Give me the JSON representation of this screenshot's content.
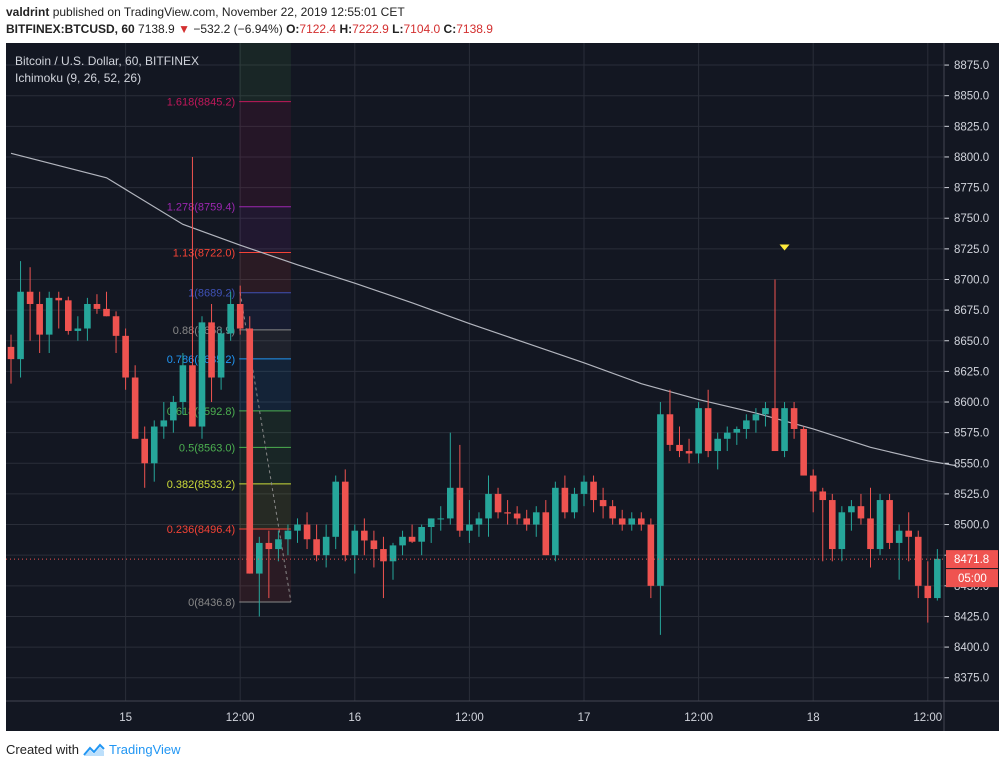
{
  "header": {
    "author": "valdrint",
    "published_text": "published on TradingView.com, November 22, 2019 12:55:01 CET",
    "symbol": "BITFINEX:BTCUSD, 60",
    "last_price": "7138.9",
    "change": "−532.2 (−6.94%)",
    "o_label": "O:",
    "o_value": "7122.4",
    "h_label": "H:",
    "h_value": "7222.9",
    "l_label": "L:",
    "l_value": "7104.0",
    "c_label": "C:",
    "c_value": "7138.9"
  },
  "footer": {
    "created_with": "Created with",
    "brand": "TradingView"
  },
  "colors": {
    "background": "#131722",
    "grid": "#2a2e39",
    "up": "#26a69a",
    "down": "#ef5350",
    "ma_line": "#b2b5be",
    "axis_text": "#d1d4dc",
    "price_tag": "#ef5350",
    "marker": "#ffeb3b"
  },
  "chart_data": {
    "type": "candlestick",
    "legend_title": "Bitcoin / U.S. Dollar, 60, BITFINEX",
    "indicator_label": "Ichimoku (9, 26, 52, 26)",
    "ylim": [
      8356,
      8893
    ],
    "y_ticks": [
      "8875.0",
      "8850.0",
      "8825.0",
      "8800.0",
      "8775.0",
      "8750.0",
      "8725.0",
      "8700.0",
      "8675.0",
      "8650.0",
      "8625.0",
      "8600.0",
      "8575.0",
      "8550.0",
      "8525.0",
      "8500.0",
      "8475.0",
      "8450.0",
      "8425.0",
      "8400.0",
      "8375.0"
    ],
    "x_ticks": [
      {
        "label": "15",
        "index": 12
      },
      {
        "label": "12:00",
        "index": 24
      },
      {
        "label": "16",
        "index": 36
      },
      {
        "label": "12:00",
        "index": 48
      },
      {
        "label": "17",
        "index": 60
      },
      {
        "label": "12:00",
        "index": 72
      },
      {
        "label": "18",
        "index": 84
      },
      {
        "label": "12:00",
        "index": 96
      }
    ],
    "current_price_label": "8471.8",
    "countdown_label": "05:00",
    "current_price": 8471.8,
    "candles": [
      [
        8645,
        8655,
        8615,
        8635
      ],
      [
        8635,
        8715,
        8620,
        8690
      ],
      [
        8690,
        8710,
        8650,
        8680
      ],
      [
        8680,
        8690,
        8640,
        8655
      ],
      [
        8655,
        8690,
        8640,
        8685
      ],
      [
        8685,
        8690,
        8660,
        8683
      ],
      [
        8683,
        8686,
        8655,
        8658
      ],
      [
        8658,
        8670,
        8650,
        8660
      ],
      [
        8660,
        8685,
        8650,
        8680
      ],
      [
        8680,
        8688,
        8672,
        8676
      ],
      [
        8676,
        8690,
        8670,
        8670
      ],
      [
        8670,
        8674,
        8640,
        8654
      ],
      [
        8654,
        8660,
        8610,
        8620
      ],
      [
        8620,
        8630,
        8570,
        8570
      ],
      [
        8570,
        8580,
        8530,
        8550
      ],
      [
        8550,
        8585,
        8535,
        8580
      ],
      [
        8580,
        8600,
        8570,
        8585
      ],
      [
        8585,
        8605,
        8575,
        8600
      ],
      [
        8600,
        8640,
        8590,
        8630
      ],
      [
        8630,
        8800,
        8580,
        8580
      ],
      [
        8580,
        8670,
        8570,
        8665
      ],
      [
        8665,
        8680,
        8600,
        8620
      ],
      [
        8620,
        8660,
        8610,
        8656
      ],
      [
        8656,
        8690,
        8650,
        8680
      ],
      [
        8680,
        8695,
        8655,
        8660
      ],
      [
        8660,
        8670,
        8460,
        8460
      ],
      [
        8460,
        8490,
        8425,
        8485
      ],
      [
        8485,
        8495,
        8440,
        8480
      ],
      [
        8480,
        8495,
        8470,
        8488
      ],
      [
        8488,
        8500,
        8475,
        8495
      ],
      [
        8495,
        8505,
        8485,
        8500
      ],
      [
        8500,
        8510,
        8480,
        8488
      ],
      [
        8488,
        8500,
        8470,
        8475
      ],
      [
        8475,
        8500,
        8465,
        8490
      ],
      [
        8490,
        8540,
        8480,
        8535
      ],
      [
        8535,
        8545,
        8470,
        8475
      ],
      [
        8475,
        8500,
        8460,
        8495
      ],
      [
        8495,
        8505,
        8475,
        8487
      ],
      [
        8487,
        8495,
        8465,
        8480
      ],
      [
        8480,
        8490,
        8440,
        8470
      ],
      [
        8470,
        8485,
        8455,
        8483
      ],
      [
        8483,
        8495,
        8475,
        8490
      ],
      [
        8490,
        8500,
        8485,
        8486
      ],
      [
        8486,
        8500,
        8475,
        8498
      ],
      [
        8498,
        8505,
        8485,
        8505
      ],
      [
        8505,
        8515,
        8495,
        8505
      ],
      [
        8505,
        8575,
        8500,
        8530
      ],
      [
        8530,
        8565,
        8490,
        8495
      ],
      [
        8495,
        8520,
        8485,
        8500
      ],
      [
        8500,
        8510,
        8490,
        8505
      ],
      [
        8505,
        8540,
        8490,
        8525
      ],
      [
        8525,
        8530,
        8505,
        8510
      ],
      [
        8510,
        8520,
        8500,
        8509
      ],
      [
        8509,
        8515,
        8500,
        8505
      ],
      [
        8505,
        8512,
        8495,
        8500
      ],
      [
        8500,
        8515,
        8490,
        8510
      ],
      [
        8510,
        8520,
        8475,
        8475
      ],
      [
        8475,
        8535,
        8470,
        8530
      ],
      [
        8530,
        8540,
        8505,
        8510
      ],
      [
        8510,
        8530,
        8505,
        8525
      ],
      [
        8525,
        8540,
        8515,
        8535
      ],
      [
        8535,
        8540,
        8510,
        8520
      ],
      [
        8520,
        8530,
        8505,
        8515
      ],
      [
        8515,
        8520,
        8500,
        8505
      ],
      [
        8505,
        8512,
        8495,
        8500
      ],
      [
        8500,
        8510,
        8495,
        8505
      ],
      [
        8505,
        8510,
        8495,
        8500
      ],
      [
        8500,
        8505,
        8440,
        8450
      ],
      [
        8450,
        8600,
        8410,
        8590
      ],
      [
        8590,
        8610,
        8560,
        8565
      ],
      [
        8565,
        8580,
        8555,
        8560
      ],
      [
        8560,
        8570,
        8550,
        8558
      ],
      [
        8558,
        8600,
        8550,
        8595
      ],
      [
        8595,
        8610,
        8555,
        8560
      ],
      [
        8560,
        8575,
        8545,
        8570
      ],
      [
        8570,
        8580,
        8560,
        8575
      ],
      [
        8575,
        8580,
        8565,
        8578
      ],
      [
        8578,
        8590,
        8570,
        8585
      ],
      [
        8585,
        8595,
        8575,
        8590
      ],
      [
        8590,
        8600,
        8580,
        8595
      ],
      [
        8595,
        8700,
        8560,
        8560
      ],
      [
        8560,
        8600,
        8555,
        8595
      ],
      [
        8595,
        8600,
        8570,
        8578
      ],
      [
        8578,
        8580,
        8540,
        8540
      ],
      [
        8540,
        8545,
        8510,
        8527
      ],
      [
        8527,
        8530,
        8470,
        8520
      ],
      [
        8520,
        8525,
        8470,
        8480
      ],
      [
        8480,
        8515,
        8470,
        8510
      ],
      [
        8510,
        8520,
        8495,
        8515
      ],
      [
        8515,
        8525,
        8500,
        8505
      ],
      [
        8505,
        8530,
        8465,
        8480
      ],
      [
        8480,
        8525,
        8475,
        8520
      ],
      [
        8520,
        8525,
        8480,
        8485
      ],
      [
        8485,
        8500,
        8455,
        8495
      ],
      [
        8495,
        8510,
        8470,
        8490
      ],
      [
        8490,
        8495,
        8440,
        8450
      ],
      [
        8450,
        8470,
        8420,
        8440
      ],
      [
        8440,
        8480,
        8438,
        8472
      ]
    ],
    "ma_line": [
      [
        0,
        8803
      ],
      [
        10,
        8783
      ],
      [
        18,
        8745
      ],
      [
        24,
        8728
      ],
      [
        30,
        8712
      ],
      [
        36,
        8697
      ],
      [
        42,
        8681
      ],
      [
        48,
        8664
      ],
      [
        54,
        8648
      ],
      [
        60,
        8632
      ],
      [
        66,
        8615
      ],
      [
        72,
        8602
      ],
      [
        78,
        8591
      ],
      [
        84,
        8578
      ],
      [
        90,
        8563
      ],
      [
        96,
        8552
      ],
      [
        99,
        8548
      ]
    ],
    "fibonacci": {
      "start_index": 24,
      "end_index": 29,
      "levels": [
        {
          "label": "1.618(8845.2)",
          "value": 8845.2,
          "color": "#c2185b"
        },
        {
          "label": "1.278(8759.4)",
          "value": 8759.4,
          "color": "#9c27b0"
        },
        {
          "label": "1.13(8722.0)",
          "value": 8722.0,
          "color": "#f44336"
        },
        {
          "label": "1(8689.2)",
          "value": 8689.2,
          "color": "#3f51b5"
        },
        {
          "label": "0.88(8658.9)",
          "value": 8658.9,
          "color": "#888888"
        },
        {
          "label": "0.786(8635.2)",
          "value": 8635.2,
          "color": "#2196f3"
        },
        {
          "label": "0.618(8592.8)",
          "value": 8592.8,
          "color": "#4caf50"
        },
        {
          "label": "0.5(8563.0)",
          "value": 8563.0,
          "color": "#4caf50"
        },
        {
          "label": "0.382(8533.2)",
          "value": 8533.2,
          "color": "#cddc39"
        },
        {
          "label": "0.236(8496.4)",
          "value": 8496.4,
          "color": "#f44336"
        },
        {
          "label": "0(8436.8)",
          "value": 8436.8,
          "color": "#888888"
        }
      ]
    },
    "marker_index": 81,
    "marker_value": 8722
  }
}
